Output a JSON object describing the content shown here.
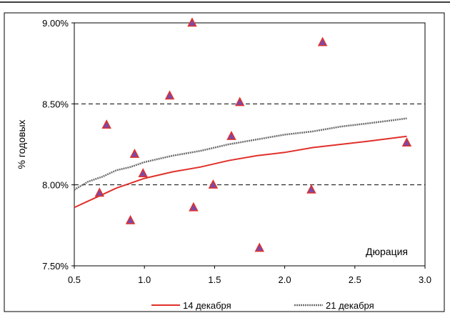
{
  "chart_data": {
    "type": "scatter",
    "title": "",
    "xlabel": "",
    "ylabel": "% годовых",
    "annotation": "Дюрация",
    "xlim": [
      0.5,
      3.0
    ],
    "ylim": [
      7.5,
      9.0
    ],
    "x_ticks": [
      "0.5",
      "1.0",
      "1.5",
      "2.0",
      "2.5",
      "3.0"
    ],
    "y_ticks": [
      "7.50%",
      "8.00%",
      "8.50%",
      "9.00%"
    ],
    "gridlines_y": [
      8.0,
      8.5,
      9.0
    ],
    "grid": "horizontal-dashed",
    "legend_position": "bottom",
    "points": [
      {
        "x": 0.68,
        "y": 7.95
      },
      {
        "x": 0.73,
        "y": 8.37
      },
      {
        "x": 0.9,
        "y": 7.78
      },
      {
        "x": 0.93,
        "y": 8.19
      },
      {
        "x": 0.99,
        "y": 8.07
      },
      {
        "x": 1.18,
        "y": 8.55
      },
      {
        "x": 1.34,
        "y": 9.0
      },
      {
        "x": 1.35,
        "y": 7.86
      },
      {
        "x": 1.49,
        "y": 8.0
      },
      {
        "x": 1.62,
        "y": 8.3
      },
      {
        "x": 1.68,
        "y": 8.51
      },
      {
        "x": 1.82,
        "y": 7.61
      },
      {
        "x": 2.19,
        "y": 7.97
      },
      {
        "x": 2.27,
        "y": 8.88
      },
      {
        "x": 2.87,
        "y": 8.26
      }
    ],
    "point_color": "#7b4aa8",
    "point_edge_color": "#e0302a",
    "series": [
      {
        "name": "14 декабря",
        "color": "#e0302a",
        "x": [
          0.5,
          0.6,
          0.7,
          0.8,
          0.9,
          1.0,
          1.2,
          1.4,
          1.6,
          1.8,
          2.0,
          2.2,
          2.4,
          2.6,
          2.87
        ],
        "y": [
          7.86,
          7.9,
          7.94,
          7.98,
          8.01,
          8.04,
          8.08,
          8.11,
          8.15,
          8.18,
          8.2,
          8.23,
          8.25,
          8.27,
          8.3
        ]
      },
      {
        "name": "21 декабря",
        "color": "#6e6e6e",
        "x": [
          0.5,
          0.6,
          0.7,
          0.8,
          0.9,
          1.0,
          1.2,
          1.4,
          1.6,
          1.8,
          2.0,
          2.2,
          2.4,
          2.6,
          2.87
        ],
        "y": [
          7.97,
          8.02,
          8.05,
          8.09,
          8.11,
          8.14,
          8.18,
          8.21,
          8.25,
          8.28,
          8.31,
          8.33,
          8.36,
          8.38,
          8.41
        ]
      }
    ]
  }
}
